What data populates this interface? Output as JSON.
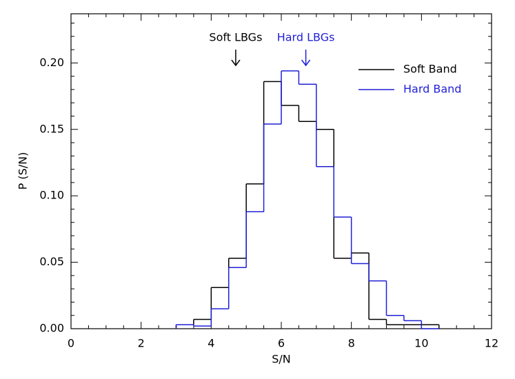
{
  "chart_data": {
    "type": "step-histogram",
    "xlabel": "S/N",
    "ylabel": "P (S/N)",
    "xlim": [
      0,
      12
    ],
    "ylim": [
      0,
      0.237
    ],
    "xticks": [
      0,
      2,
      4,
      6,
      8,
      10,
      12
    ],
    "yticks": [
      {
        "value": 0,
        "label": "0.00"
      },
      {
        "value": 0.05,
        "label": "0.05"
      },
      {
        "value": 0.1,
        "label": "0.10"
      },
      {
        "value": 0.15,
        "label": "0.15"
      },
      {
        "value": 0.2,
        "label": "0.20"
      }
    ],
    "legend": "upper right",
    "bins": [
      3,
      3.5,
      4,
      4.5,
      5,
      5.5,
      6,
      6.5,
      7,
      7.5,
      8,
      8.5,
      9,
      9.5,
      10,
      10.5
    ],
    "series": [
      {
        "name": "Soft Band",
        "color": "#000000",
        "values": [
          0.003,
          0.007,
          0.031,
          0.053,
          0.109,
          0.186,
          0.168,
          0.156,
          0.15,
          0.053,
          0.057,
          0.007,
          0.003,
          0.003,
          0.003
        ]
      },
      {
        "name": "Hard Band",
        "color": "#1f1fd6",
        "values": [
          0.003,
          0.002,
          0.015,
          0.046,
          0.088,
          0.154,
          0.194,
          0.184,
          0.122,
          0.084,
          0.049,
          0.036,
          0.01,
          0.006,
          0
        ]
      }
    ],
    "annotations": [
      {
        "text": "Soft LBGs",
        "x": 4.7,
        "color": "#000000"
      },
      {
        "text": "Hard LBGs",
        "x": 6.7,
        "color": "#1f1fd6"
      }
    ]
  }
}
